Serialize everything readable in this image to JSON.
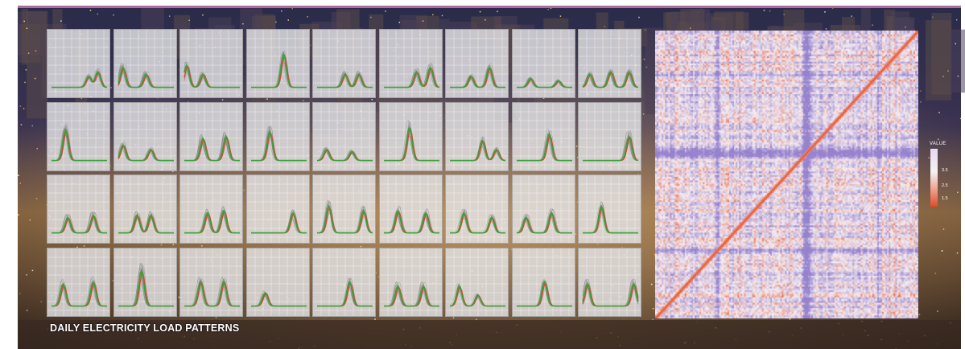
{
  "title": "DAILY ELECTRICITY LOAD PATTERNS",
  "colors": {
    "profile_lines": "#8a8a8a",
    "centroid_main": "#3aa13a",
    "centroid_secondary": "#e0402a",
    "heatmap_high": "#e8512a",
    "heatmap_low": "#8870c8",
    "panel_bg": "#e4e4e6"
  },
  "chart_data": [
    {
      "type": "line",
      "title": "",
      "layout_hint": "small-multiples grid, 4 rows x 9 columns",
      "x": [
        0,
        2,
        4,
        6,
        8,
        10,
        12,
        14,
        16,
        18,
        20,
        22,
        24
      ],
      "series_shape": "typical daily load profile per cluster",
      "clusters": [
        {
          "peaks": [
            [
              16,
              0.25
            ],
            [
              20,
              0.35
            ]
          ]
        },
        {
          "peaks": [
            [
              2,
              0.45
            ],
            [
              12,
              0.3
            ]
          ]
        },
        {
          "peaks": [
            [
              1,
              0.5
            ],
            [
              8,
              0.3
            ]
          ]
        },
        {
          "peaks": [
            [
              14,
              0.75
            ]
          ]
        },
        {
          "peaks": [
            [
              12,
              0.3
            ],
            [
              18,
              0.3
            ]
          ]
        },
        {
          "peaks": [
            [
              14,
              0.35
            ],
            [
              20,
              0.45
            ]
          ]
        },
        {
          "peaks": [
            [
              9,
              0.25
            ],
            [
              17,
              0.45
            ]
          ]
        },
        {
          "peaks": [
            [
              6,
              0.2
            ],
            [
              18,
              0.15
            ]
          ]
        },
        {
          "peaks": [
            [
              3,
              0.3
            ],
            [
              12,
              0.35
            ],
            [
              20,
              0.35
            ]
          ]
        },
        {
          "peaks": [
            [
              6,
              0.7
            ]
          ]
        },
        {
          "peaks": [
            [
              2,
              0.35
            ],
            [
              14,
              0.25
            ]
          ]
        },
        {
          "peaks": [
            [
              8,
              0.5
            ],
            [
              18,
              0.55
            ]
          ]
        },
        {
          "peaks": [
            [
              8,
              0.65
            ]
          ]
        },
        {
          "peaks": [
            [
              4,
              0.25
            ],
            [
              15,
              0.2
            ]
          ]
        },
        {
          "peaks": [
            [
              11,
              0.75
            ]
          ]
        },
        {
          "peaks": [
            [
              14,
              0.45
            ],
            [
              20,
              0.25
            ]
          ]
        },
        {
          "peaks": [
            [
              14,
              0.6
            ]
          ]
        },
        {
          "peaks": [
            [
              20,
              0.55
            ]
          ]
        },
        {
          "peaks": [
            [
              7,
              0.35
            ],
            [
              18,
              0.4
            ]
          ]
        },
        {
          "peaks": [
            [
              8,
              0.4
            ],
            [
              14,
              0.4
            ]
          ]
        },
        {
          "peaks": [
            [
              10,
              0.45
            ],
            [
              17,
              0.5
            ]
          ]
        },
        {
          "peaks": [
            [
              18,
              0.45
            ]
          ]
        },
        {
          "peaks": [
            [
              5,
              0.6
            ],
            [
              20,
              0.5
            ]
          ]
        },
        {
          "peaks": [
            [
              6,
              0.5
            ],
            [
              18,
              0.45
            ]
          ]
        },
        {
          "peaks": [
            [
              6,
              0.45
            ],
            [
              18,
              0.35
            ]
          ]
        },
        {
          "peaks": [
            [
              4,
              0.35
            ],
            [
              15,
              0.45
            ]
          ]
        },
        {
          "peaks": [
            [
              8,
              0.6
            ]
          ]
        },
        {
          "peaks": [
            [
              5,
              0.5
            ],
            [
              18,
              0.55
            ]
          ]
        },
        {
          "peaks": [
            [
              10,
              0.8
            ]
          ]
        },
        {
          "peaks": [
            [
              7,
              0.55
            ],
            [
              17,
              0.55
            ]
          ]
        },
        {
          "peaks": [
            [
              6,
              0.3
            ]
          ]
        },
        {
          "peaks": [
            [
              14,
              0.55
            ]
          ]
        },
        {
          "peaks": [
            [
              6,
              0.45
            ],
            [
              17,
              0.45
            ]
          ]
        },
        {
          "peaks": [
            [
              4,
              0.45
            ],
            [
              12,
              0.25
            ]
          ]
        },
        {
          "peaks": [
            [
              12,
              0.55
            ]
          ]
        },
        {
          "peaks": [
            [
              2,
              0.5
            ],
            [
              22,
              0.5
            ]
          ]
        }
      ]
    },
    {
      "type": "heatmap",
      "title": "",
      "description": "symmetric similarity matrix with strong diagonal",
      "legend": {
        "title": "VALUE",
        "ticks": [
          "3.5",
          "2.5",
          "1.5"
        ],
        "placement": "right"
      }
    }
  ]
}
